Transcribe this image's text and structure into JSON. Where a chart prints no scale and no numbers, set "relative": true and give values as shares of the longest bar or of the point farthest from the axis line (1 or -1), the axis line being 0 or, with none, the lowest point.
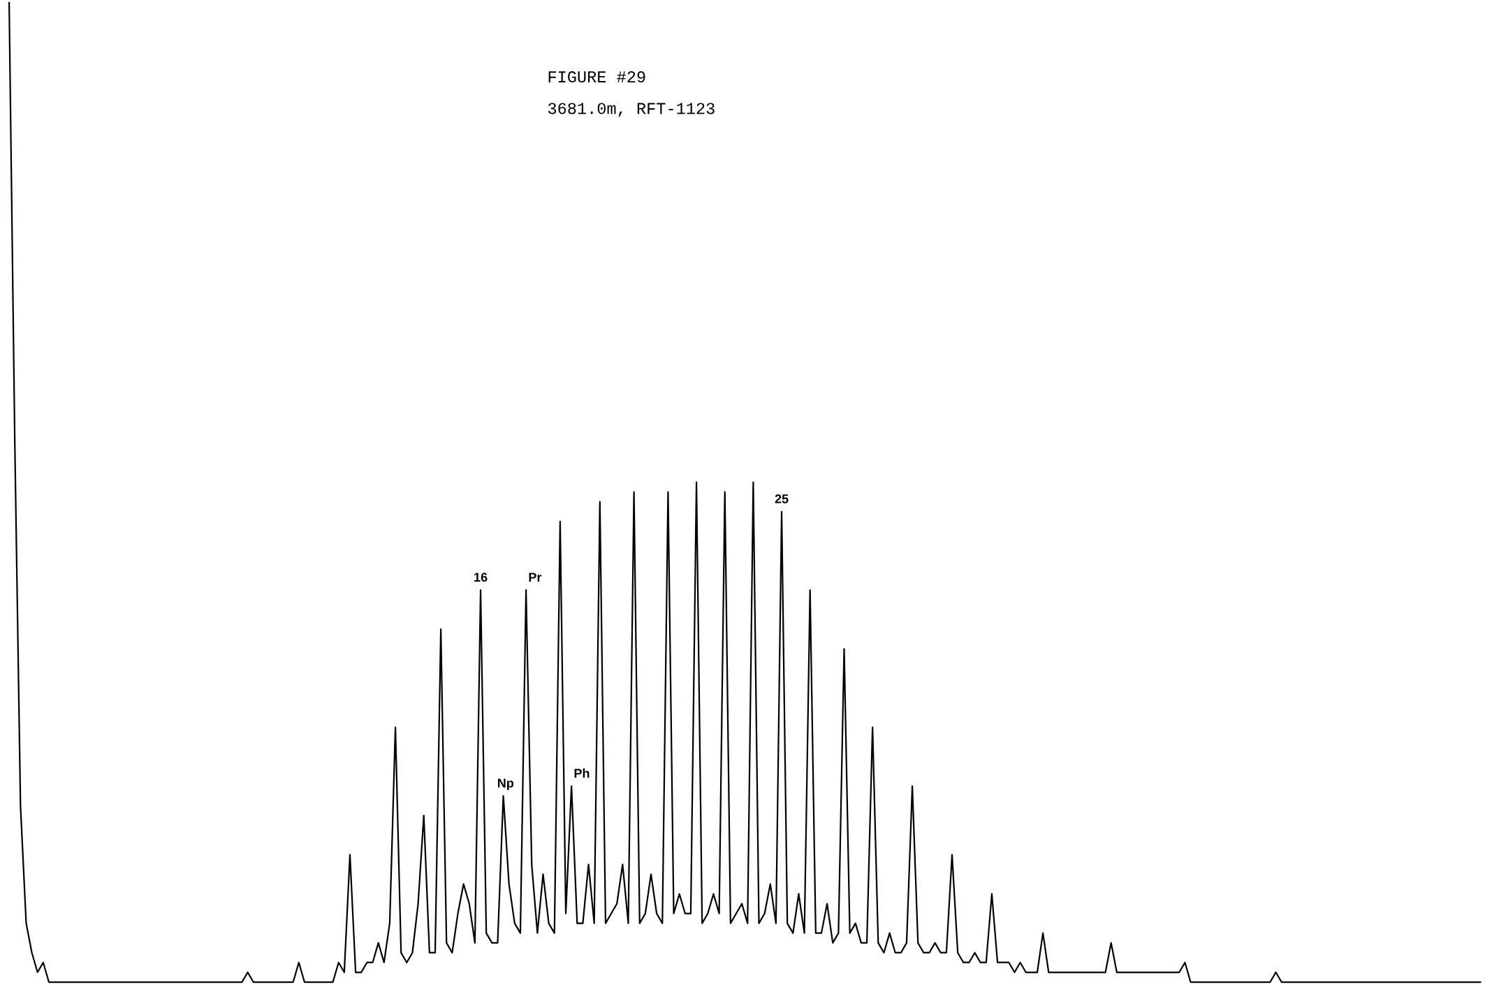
{
  "chart_data": {
    "type": "line",
    "title": "FIGURE #29",
    "subtitle": "3681.0m, RFT-1123",
    "relative": true,
    "grid": false,
    "tick_labels": false,
    "annotations": [
      "16",
      "Np",
      "Pr",
      "Ph",
      "25"
    ],
    "categories": [
      null,
      null,
      null,
      null,
      null,
      null,
      null,
      null,
      null,
      null,
      null,
      null,
      null,
      null,
      null,
      null,
      null,
      null,
      null,
      null,
      null,
      null,
      null,
      null,
      null,
      null,
      null,
      null,
      null,
      null,
      null,
      null,
      null,
      null,
      null,
      null,
      null,
      null,
      null,
      null,
      null,
      null,
      null,
      null,
      null,
      null,
      null,
      null,
      null,
      null,
      null,
      null,
      null,
      null,
      null,
      null,
      null,
      null,
      null,
      null,
      null,
      null,
      null,
      null,
      null,
      null,
      null,
      null,
      null,
      null,
      null,
      null,
      null,
      null,
      null,
      null,
      null,
      null,
      null,
      null,
      null,
      null,
      null,
      null,
      null,
      null,
      null,
      null,
      null,
      null,
      null,
      null,
      null,
      null,
      null,
      null,
      null,
      null,
      null,
      null,
      null,
      null,
      null,
      null,
      null,
      null,
      null,
      null,
      null,
      null,
      null,
      null,
      null,
      null,
      null,
      null,
      null,
      null,
      null,
      null,
      null,
      null,
      null,
      null,
      null,
      null,
      null,
      null,
      null,
      null,
      null,
      null,
      null,
      null,
      null,
      null,
      null,
      null,
      null,
      null,
      null,
      null,
      null,
      null,
      null,
      null,
      null,
      null,
      null,
      null,
      null,
      null,
      null,
      null,
      null,
      null,
      null,
      null,
      null,
      null,
      null,
      null,
      null,
      null,
      null,
      null,
      null,
      null,
      null,
      null,
      null,
      null,
      null,
      null,
      null,
      null,
      null,
      null,
      null,
      null,
      null,
      null,
      null,
      null,
      null,
      null,
      null,
      null,
      null,
      null,
      null,
      null,
      null,
      null,
      null,
      null,
      null,
      null,
      null,
      null,
      null,
      null,
      null,
      null,
      null,
      null,
      null,
      null,
      null,
      null,
      null,
      null,
      null,
      null,
      null,
      null,
      null,
      null,
      null,
      null,
      null,
      null,
      null,
      null,
      null,
      null,
      null,
      null,
      null,
      null,
      null,
      null,
      null,
      null,
      null,
      null,
      null,
      null,
      null,
      null,
      null,
      null,
      null,
      null,
      null,
      null,
      null,
      null,
      null,
      null,
      null,
      null,
      null,
      null,
      null,
      null,
      null,
      null,
      null,
      null
    ],
    "series": [
      {
        "color": "#000000",
        "values": [
          1.0,
          0.55,
          0.18,
          0.06,
          0.03,
          0.01,
          0.02,
          0,
          0,
          0,
          0,
          0,
          0,
          0,
          0,
          0,
          0,
          0,
          0,
          0,
          0,
          0,
          0,
          0,
          0,
          0,
          0,
          0,
          0,
          0,
          0,
          0,
          0,
          0,
          0,
          0,
          0,
          0,
          0,
          0,
          0,
          0,
          0.01,
          0,
          0,
          0,
          0,
          0,
          0,
          0,
          0,
          0.02,
          0,
          0,
          0,
          0,
          0,
          0,
          0.02,
          0.01,
          0.13,
          0.01,
          0.01,
          0.02,
          0.02,
          0.04,
          0.02,
          0.06,
          0.26,
          0.03,
          0.02,
          0.03,
          0.08,
          0.17,
          0.03,
          0.03,
          0.36,
          0.04,
          0.03,
          0.07,
          0.1,
          0.08,
          0.04,
          0.4,
          0.05,
          0.04,
          0.04,
          0.19,
          0.1,
          0.06,
          0.05,
          0.4,
          0.12,
          0.05,
          0.11,
          0.06,
          0.05,
          0.47,
          0.07,
          0.2,
          0.06,
          0.06,
          0.12,
          0.06,
          0.49,
          0.06,
          0.07,
          0.08,
          0.12,
          0.06,
          0.5,
          0.06,
          0.07,
          0.11,
          0.07,
          0.06,
          0.5,
          0.07,
          0.09,
          0.07,
          0.07,
          0.51,
          0.06,
          0.07,
          0.09,
          0.07,
          0.5,
          0.06,
          0.07,
          0.08,
          0.06,
          0.51,
          0.06,
          0.07,
          0.1,
          0.06,
          0.48,
          0.06,
          0.05,
          0.09,
          0.05,
          0.4,
          0.05,
          0.05,
          0.08,
          0.04,
          0.05,
          0.34,
          0.05,
          0.06,
          0.04,
          0.04,
          0.26,
          0.04,
          0.03,
          0.05,
          0.03,
          0.03,
          0.04,
          0.2,
          0.04,
          0.03,
          0.03,
          0.04,
          0.03,
          0.03,
          0.13,
          0.03,
          0.02,
          0.02,
          0.03,
          0.02,
          0.02,
          0.09,
          0.02,
          0.02,
          0.02,
          0.01,
          0.02,
          0.01,
          0.01,
          0.01,
          0.05,
          0.01,
          0.01,
          0.01,
          0.01,
          0.01,
          0.01,
          0.01,
          0.01,
          0.01,
          0.01,
          0.01,
          0.04,
          0.01,
          0.01,
          0.01,
          0.01,
          0.01,
          0.01,
          0.01,
          0.01,
          0.01,
          0.01,
          0.01,
          0.01,
          0.02,
          0,
          0,
          0,
          0,
          0,
          0,
          0,
          0,
          0,
          0,
          0,
          0,
          0,
          0,
          0,
          0.01,
          0,
          0,
          0,
          0,
          0,
          0,
          0,
          0,
          0,
          0,
          0,
          0,
          0,
          0,
          0,
          0,
          0,
          0,
          0,
          0,
          0,
          0,
          0,
          0,
          0,
          0,
          0,
          0,
          0,
          0,
          0,
          0,
          0,
          0,
          0,
          0
        ]
      }
    ]
  }
}
